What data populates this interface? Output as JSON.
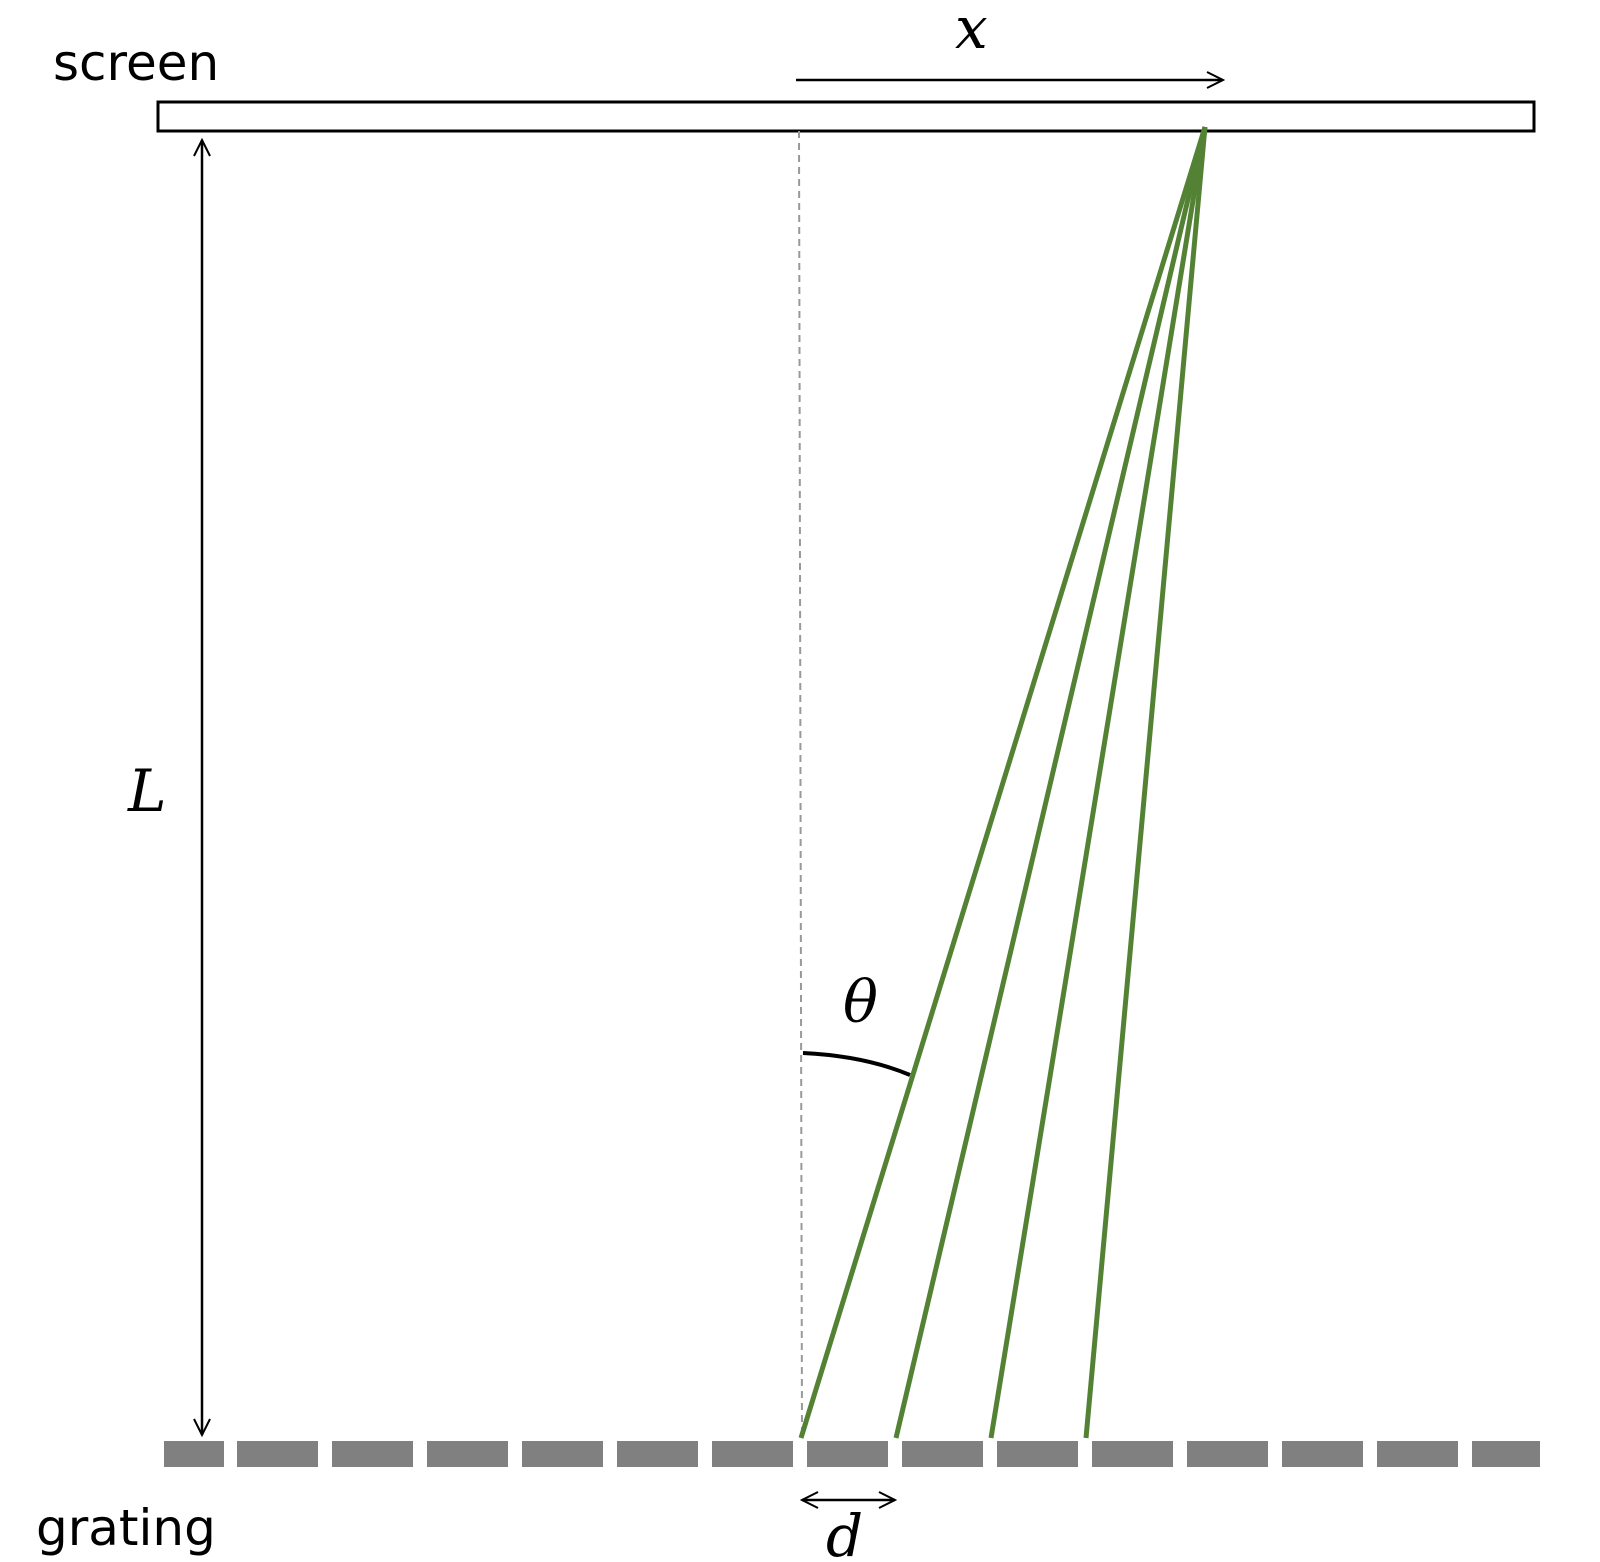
{
  "labels": {
    "screen": "screen",
    "grating": "grating",
    "x": "x",
    "L": "L",
    "theta": "θ",
    "d": "d"
  },
  "colors": {
    "ray": "#548235",
    "grating_slat": "#808080",
    "outline": "#000000",
    "normal_line": "#999999"
  },
  "grating": {
    "slat_count": 15
  },
  "rays": {
    "count": 4
  }
}
